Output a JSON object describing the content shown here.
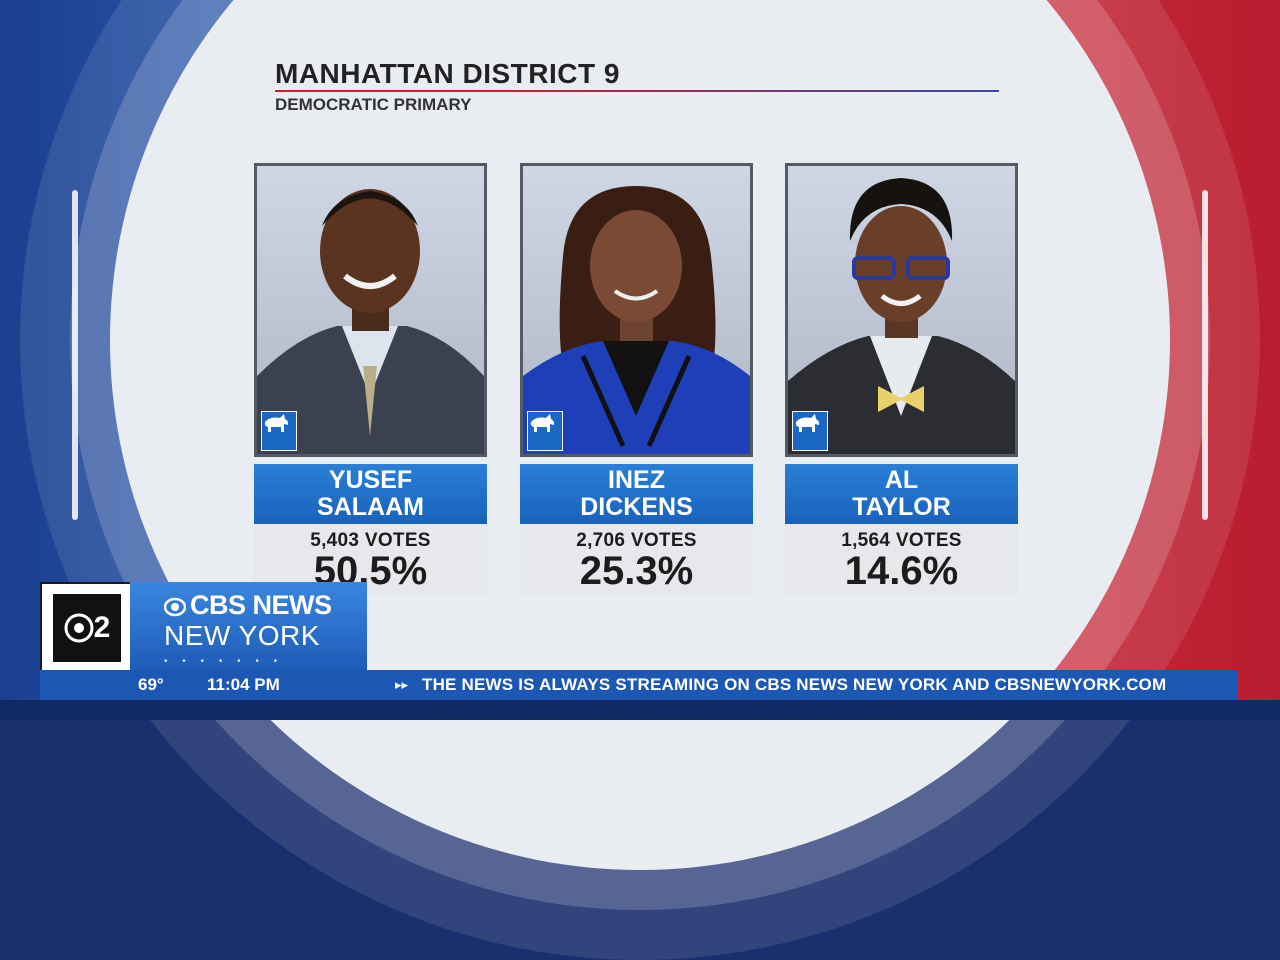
{
  "header": {
    "title": "MANHATTAN DISTRICT 9",
    "subtitle": "DEMOCRATIC PRIMARY"
  },
  "candidates": [
    {
      "first": "YUSEF",
      "last": "SALAAM",
      "votes": "5,403 VOTES",
      "percent": "50.5%",
      "party_icon": "donkey-icon"
    },
    {
      "first": "INEZ",
      "last": "DICKENS",
      "votes": "2,706  VOTES",
      "percent": "25.3%",
      "party_icon": "donkey-icon"
    },
    {
      "first": "AL",
      "last": "TAYLOR",
      "votes": "1,564 VOTES",
      "percent": "14.6%",
      "party_icon": "donkey-icon"
    }
  ],
  "branding": {
    "channel": "2",
    "network": "CBS NEWS",
    "station": "NEW YORK"
  },
  "ticker": {
    "temperature": "69°",
    "time": "11:04 PM",
    "crawl": "THE NEWS IS ALWAYS STREAMING ON CBS NEWS NEW YORK AND CBSNEWYORK.COM"
  },
  "colors": {
    "democrat_blue": "#1a62bb",
    "republican_red": "#c72a3a",
    "ticker_blue": "#1c58b3"
  }
}
